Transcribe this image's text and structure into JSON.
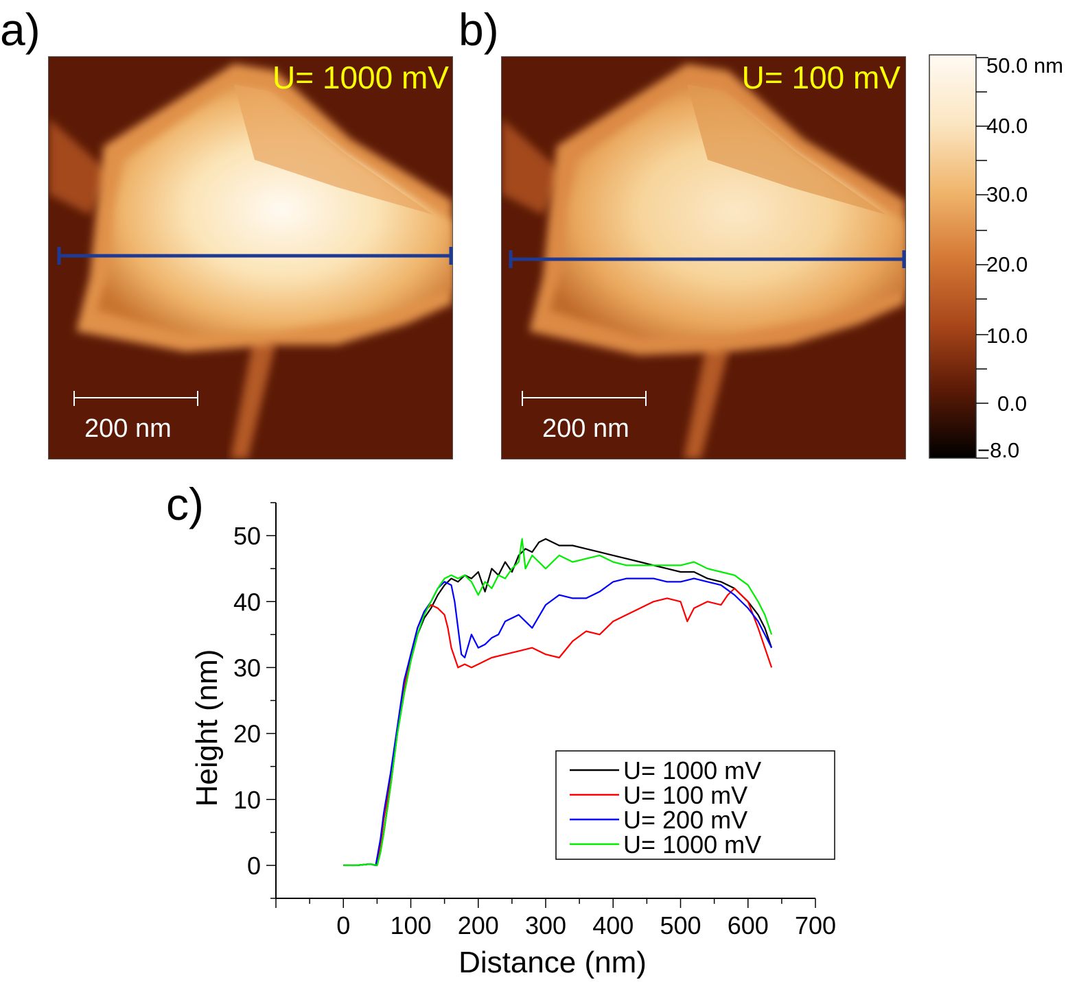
{
  "panels": {
    "a": {
      "letter": "a)",
      "voltage": "U= 1000 mV",
      "scale_bar": "200 nm"
    },
    "b": {
      "letter": "b)",
      "voltage": "U= 100 mV",
      "scale_bar": "200 nm"
    },
    "c": {
      "letter": "c)"
    }
  },
  "colorbar": {
    "labels": [
      "50.0 nm",
      "40.0",
      "30.0",
      "20.0",
      "10.0",
      "0.0",
      "−8.0"
    ]
  },
  "colors": {
    "line_cut": "#1f3a93",
    "voltage_text": "#ffff00",
    "afm_dark": "#5c1a06",
    "afm_bright": "#fff7ea"
  },
  "chart_data": {
    "type": "line",
    "xlabel": "Distance (nm)",
    "ylabel": "Height (nm)",
    "xlim": [
      -100,
      700
    ],
    "ylim": [
      -5,
      55
    ],
    "xticks": [
      0,
      100,
      200,
      300,
      400,
      500,
      600,
      700
    ],
    "yticks": [
      0,
      10,
      20,
      30,
      40,
      50
    ],
    "legend_position": "bottom-right",
    "series": [
      {
        "name": "U= 1000 mV",
        "color": "#000000",
        "x": [
          0,
          20,
          40,
          50,
          55,
          60,
          70,
          80,
          90,
          100,
          110,
          120,
          130,
          140,
          150,
          160,
          170,
          180,
          190,
          200,
          210,
          220,
          230,
          240,
          250,
          260,
          270,
          280,
          290,
          300,
          320,
          340,
          360,
          380,
          400,
          420,
          440,
          460,
          480,
          500,
          520,
          540,
          560,
          580,
          600,
          615,
          625,
          635
        ],
        "y": [
          0,
          0,
          0.2,
          0,
          2,
          5,
          12,
          20,
          26,
          31,
          35,
          37.5,
          39,
          41,
          42.5,
          43.5,
          43,
          44,
          43.5,
          44.5,
          41.5,
          45,
          44,
          46,
          44.5,
          47,
          48,
          47.5,
          49,
          49.5,
          48.5,
          48.5,
          48,
          47.5,
          47,
          46.5,
          46,
          45.5,
          45,
          44.5,
          44.5,
          43.5,
          43,
          42,
          40,
          38,
          36,
          33
        ]
      },
      {
        "name": "U= 100 mV",
        "color": "#ff0000",
        "x": [
          0,
          20,
          40,
          48,
          55,
          60,
          70,
          80,
          90,
          100,
          110,
          120,
          130,
          140,
          150,
          155,
          160,
          170,
          180,
          190,
          200,
          210,
          220,
          240,
          260,
          280,
          300,
          320,
          340,
          360,
          380,
          400,
          420,
          440,
          460,
          480,
          500,
          510,
          520,
          540,
          560,
          570,
          580,
          600,
          615,
          625,
          635
        ],
        "y": [
          0,
          0,
          0.2,
          0,
          3,
          7,
          13,
          20,
          27,
          32,
          36,
          38.5,
          39.5,
          39,
          38,
          36,
          33,
          30,
          30.5,
          30,
          30.5,
          31,
          31.5,
          32,
          32.5,
          33,
          32,
          31.5,
          34,
          35.5,
          35,
          37,
          38,
          39,
          40,
          40.5,
          40,
          37,
          39,
          40,
          39.5,
          41,
          42,
          40,
          36,
          33,
          30
        ]
      },
      {
        "name": "U= 200 mV",
        "color": "#0000ff",
        "x": [
          0,
          20,
          40,
          48,
          55,
          60,
          70,
          80,
          90,
          100,
          110,
          120,
          130,
          140,
          150,
          160,
          165,
          170,
          175,
          180,
          190,
          200,
          210,
          220,
          230,
          240,
          260,
          280,
          300,
          320,
          340,
          360,
          380,
          400,
          420,
          440,
          460,
          480,
          500,
          520,
          540,
          560,
          580,
          600,
          615,
          625,
          635
        ],
        "y": [
          0,
          0,
          0.2,
          0,
          4,
          8,
          14,
          21,
          28,
          32,
          36,
          38.5,
          40,
          42,
          43,
          42.5,
          40,
          36,
          32,
          31.5,
          35,
          33,
          33.5,
          34.5,
          35,
          37,
          38,
          36,
          39.5,
          41,
          40.5,
          40.5,
          41.5,
          43,
          43.5,
          43.5,
          43.5,
          43,
          43,
          43.5,
          43,
          42.5,
          41,
          39,
          37,
          35,
          33
        ]
      },
      {
        "name": "U= 1000 mV",
        "color": "#00ee00",
        "x": [
          0,
          20,
          40,
          50,
          55,
          60,
          70,
          80,
          90,
          100,
          110,
          120,
          130,
          140,
          150,
          160,
          170,
          180,
          190,
          200,
          210,
          220,
          230,
          240,
          250,
          260,
          265,
          270,
          280,
          300,
          320,
          340,
          360,
          380,
          400,
          420,
          440,
          460,
          480,
          500,
          520,
          540,
          560,
          580,
          600,
          615,
          625,
          635
        ],
        "y": [
          0,
          0,
          0.2,
          0,
          2,
          5,
          12,
          20,
          26,
          31,
          35,
          38,
          40,
          42,
          43.5,
          44,
          43.5,
          44,
          43,
          41,
          43,
          42,
          44,
          43.5,
          45,
          46,
          49.5,
          45,
          47,
          45,
          47,
          46,
          46.5,
          47,
          46,
          45.5,
          45.5,
          45.5,
          45.5,
          45.5,
          46,
          45,
          44.5,
          44,
          42.5,
          40,
          38,
          35
        ]
      }
    ]
  }
}
